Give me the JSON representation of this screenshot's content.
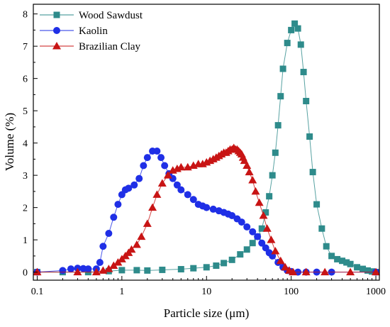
{
  "chart_data": {
    "type": "scatter",
    "title": "",
    "xlabel": "Particle size (μm)",
    "ylabel": "Volume (%)",
    "xscale": "log",
    "xlim": [
      0.09,
      1100
    ],
    "ylim": [
      -0.25,
      8.3
    ],
    "x_ticks": [
      0.1,
      1,
      10,
      100,
      1000
    ],
    "x_tick_labels": [
      "0.1",
      "1",
      "10",
      "100",
      "1000"
    ],
    "y_ticks": [
      0,
      1,
      2,
      3,
      4,
      5,
      6,
      7,
      8
    ],
    "y_tick_labels": [
      "0",
      "1",
      "2",
      "3",
      "4",
      "5",
      "6",
      "7",
      "8"
    ],
    "grid": false,
    "legend_position": "top-left",
    "series": [
      {
        "name": "Wood Sawdust",
        "marker": "square",
        "color": "#2e8b8b",
        "x": [
          0.1,
          0.2,
          0.4,
          0.7,
          1.0,
          1.5,
          2.0,
          3.0,
          5.0,
          7.0,
          10,
          13,
          16,
          20,
          25,
          30,
          35,
          40,
          45,
          50,
          55,
          60,
          65,
          70,
          75,
          80,
          90,
          100,
          110,
          120,
          130,
          140,
          150,
          165,
          180,
          200,
          230,
          260,
          300,
          350,
          400,
          450,
          500,
          600,
          700,
          800,
          900,
          1000
        ],
        "y": [
          0,
          0,
          0,
          0.03,
          0.06,
          0.06,
          0.05,
          0.07,
          0.09,
          0.12,
          0.15,
          0.2,
          0.28,
          0.38,
          0.55,
          0.7,
          0.9,
          1.1,
          1.35,
          1.85,
          2.35,
          3.0,
          3.7,
          4.55,
          5.45,
          6.3,
          7.1,
          7.5,
          7.7,
          7.55,
          7.05,
          6.2,
          5.3,
          4.2,
          3.1,
          2.1,
          1.35,
          0.8,
          0.5,
          0.4,
          0.35,
          0.3,
          0.25,
          0.15,
          0.1,
          0.05,
          0.02,
          0
        ],
        "x_note": "values read at printed marks"
      },
      {
        "name": "Kaolin",
        "marker": "circle",
        "color": "#1f2fe6",
        "x": [
          0.1,
          0.2,
          0.25,
          0.3,
          0.35,
          0.4,
          0.5,
          0.55,
          0.6,
          0.7,
          0.8,
          0.9,
          1.0,
          1.1,
          1.2,
          1.4,
          1.6,
          1.8,
          2.0,
          2.3,
          2.6,
          2.9,
          3.2,
          3.6,
          4.0,
          4.5,
          5.0,
          6.0,
          7.0,
          8.0,
          9.0,
          10,
          12,
          14,
          16,
          18,
          20,
          23,
          26,
          30,
          35,
          40,
          45,
          50,
          55,
          60,
          70,
          80,
          90,
          100,
          120,
          150,
          200,
          300,
          1000
        ],
        "y": [
          0,
          0.05,
          0.1,
          0.12,
          0.11,
          0.1,
          0.1,
          0.3,
          0.8,
          1.2,
          1.7,
          2.1,
          2.4,
          2.55,
          2.6,
          2.7,
          2.9,
          3.3,
          3.55,
          3.75,
          3.75,
          3.55,
          3.3,
          3.05,
          2.9,
          2.7,
          2.55,
          2.4,
          2.25,
          2.1,
          2.05,
          2.0,
          1.95,
          1.9,
          1.85,
          1.8,
          1.75,
          1.65,
          1.55,
          1.4,
          1.25,
          1.1,
          0.9,
          0.75,
          0.6,
          0.5,
          0.3,
          0.15,
          0.05,
          0.02,
          0,
          0,
          0,
          0,
          0
        ]
      },
      {
        "name": "Brazilian Clay",
        "marker": "triangle",
        "color": "#c81414",
        "x": [
          0.1,
          0.3,
          0.5,
          0.6,
          0.7,
          0.8,
          0.9,
          1.0,
          1.1,
          1.2,
          1.3,
          1.5,
          1.7,
          2.0,
          2.3,
          2.6,
          3.0,
          3.5,
          4.0,
          4.5,
          5.0,
          6.0,
          7.0,
          8.0,
          9.0,
          10,
          11,
          12,
          13,
          14,
          15,
          16,
          17,
          18,
          19,
          20,
          21,
          22,
          23,
          24,
          25,
          26,
          27,
          28,
          30,
          32,
          35,
          38,
          42,
          47,
          52,
          58,
          65,
          75,
          85,
          95,
          105,
          150,
          250,
          500,
          1000
        ],
        "y": [
          0,
          0,
          0,
          0.05,
          0.1,
          0.2,
          0.3,
          0.4,
          0.5,
          0.6,
          0.7,
          0.85,
          1.1,
          1.5,
          2.0,
          2.4,
          2.75,
          3.0,
          3.15,
          3.2,
          3.25,
          3.25,
          3.3,
          3.35,
          3.35,
          3.4,
          3.45,
          3.5,
          3.55,
          3.6,
          3.65,
          3.7,
          3.7,
          3.75,
          3.8,
          3.8,
          3.85,
          3.8,
          3.8,
          3.75,
          3.7,
          3.65,
          3.55,
          3.45,
          3.3,
          3.1,
          2.85,
          2.5,
          2.15,
          1.75,
          1.35,
          1.0,
          0.65,
          0.35,
          0.15,
          0.05,
          0,
          0,
          0,
          0,
          0
        ]
      }
    ]
  }
}
